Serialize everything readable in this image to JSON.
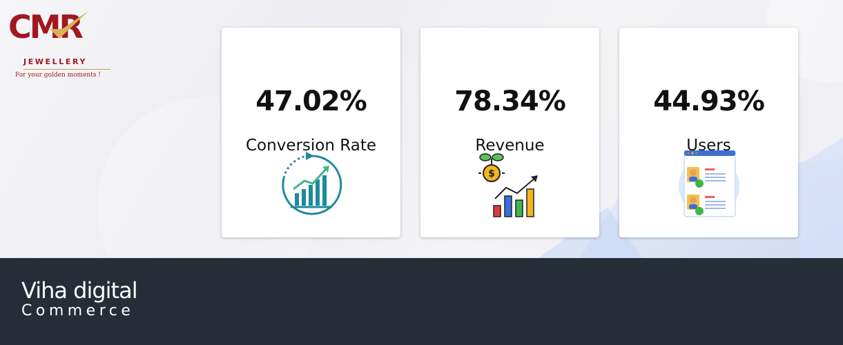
{
  "logo": {
    "name": "CMR",
    "subtitle": "JEWELLERY",
    "tagline": "For your golden moments !"
  },
  "stats": [
    {
      "value": "47.02%",
      "label": "Conversion Rate",
      "icon": "growth-chart-icon"
    },
    {
      "value": "78.34%",
      "label": "Revenue",
      "icon": "revenue-chart-icon"
    },
    {
      "value": "44.93%",
      "label": "Users",
      "icon": "users-profile-icon"
    }
  ],
  "footer": {
    "brand_line1": "Viha digital",
    "brand_line2": "Commerce"
  },
  "colors": {
    "logo_red": "#a1181f",
    "logo_gold": "#c9a24a",
    "footer_bg": "#262d36",
    "card_bg": "#ffffff"
  }
}
